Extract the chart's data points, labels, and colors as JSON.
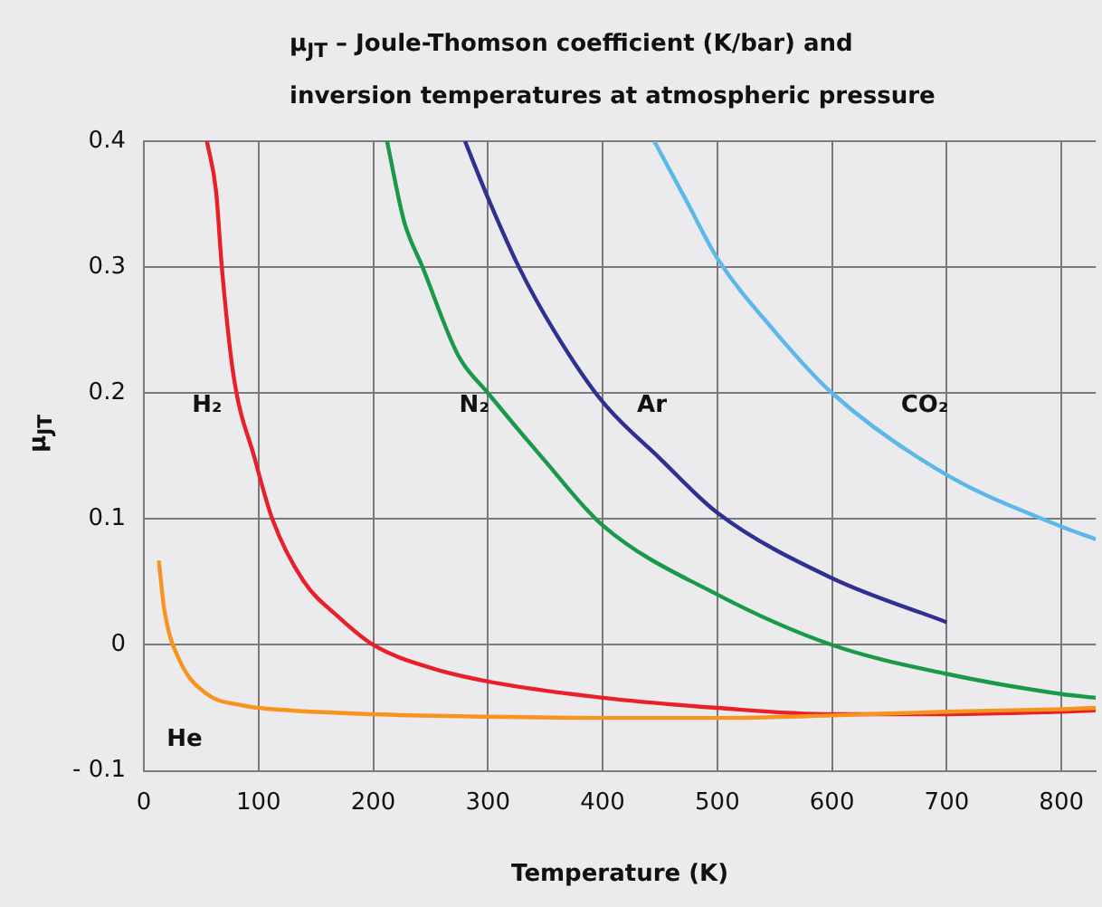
{
  "chart_data": {
    "type": "line",
    "title": "μ$_{JT}$ – Joule-Thomson coefficient (K/bar) and inversion temperatures at atmospheric pressure",
    "xlabel": "Temperature (K)",
    "ylabel": "μ$_{JT}$",
    "xlim": [
      0,
      830
    ],
    "xticks": [
      0,
      100,
      200,
      300,
      400,
      500,
      600,
      700,
      800
    ],
    "ylim": [
      -0.1,
      0.4
    ],
    "yticks": [
      {
        "value": -0.1,
        "label": "- 0.1"
      },
      0,
      0.1,
      0.2,
      0.3,
      0.4
    ],
    "grid": true,
    "legend": false,
    "marker": "none",
    "line_style": "solid",
    "series": [
      {
        "name": "He",
        "color": "#f7941d",
        "x": [
          13,
          18,
          31,
          55,
          86,
          100,
          200,
          300,
          400,
          500,
          600,
          700,
          800,
          830
        ],
        "values": [
          0.067,
          0.027,
          -0.012,
          -0.039,
          -0.048,
          -0.05,
          -0.055,
          -0.057,
          -0.058,
          -0.058,
          -0.056,
          -0.053,
          -0.051,
          -0.05
        ]
      },
      {
        "name": "H₂",
        "color": "#e8202a",
        "x": [
          55,
          63,
          68,
          78,
          97,
          112,
          139,
          170,
          200,
          253,
          300,
          400,
          500,
          600,
          700,
          800,
          830
        ],
        "values": [
          0.4,
          0.36,
          0.3,
          0.215,
          0.147,
          0.1,
          0.051,
          0.022,
          0,
          -0.019,
          -0.029,
          -0.042,
          -0.05,
          -0.055,
          -0.055,
          -0.053,
          -0.052
        ]
      },
      {
        "name": "N₂",
        "color": "#1a9a48",
        "x": [
          212,
          227,
          243,
          274,
          300,
          348,
          400,
          500,
          600,
          700,
          800,
          830
        ],
        "values": [
          0.4,
          0.336,
          0.3,
          0.23,
          0.2,
          0.148,
          0.095,
          0.04,
          0,
          -0.023,
          -0.039,
          -0.042
        ]
      },
      {
        "name": "Ar",
        "color": "#2e3192",
        "x": [
          280,
          300,
          327,
          358,
          400,
          450,
          500,
          600,
          700
        ],
        "values": [
          0.4,
          0.355,
          0.3,
          0.249,
          0.193,
          0.148,
          0.105,
          0.053,
          0.018
        ]
      },
      {
        "name": "CO₂",
        "color": "#5bb8e8",
        "x": [
          445,
          474,
          500,
          550,
          600,
          700,
          800,
          830
        ],
        "values": [
          0.4,
          0.351,
          0.307,
          0.249,
          0.2,
          0.135,
          0.094,
          0.084
        ]
      }
    ]
  }
}
